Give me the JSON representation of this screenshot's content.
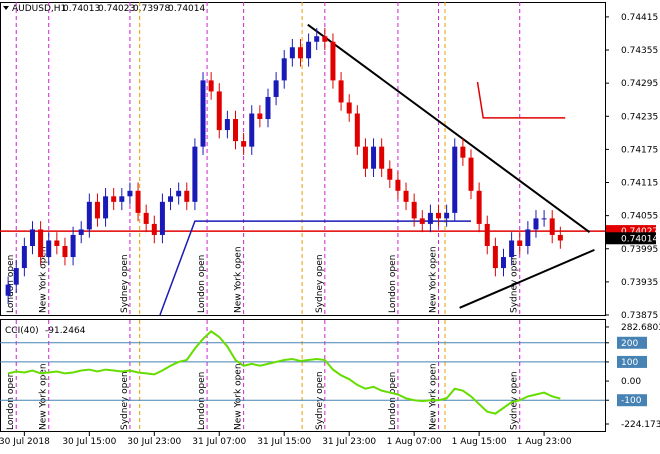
{
  "chart_data": {
    "type": "candlestick",
    "symbol": "AUDUSD,H1",
    "header_values": [
      0.74013,
      0.74023,
      0.73978,
      0.74014
    ],
    "xlim": [
      -1,
      73.5
    ],
    "ylim": [
      0.73875,
      0.74442
    ],
    "yticks": [
      0.74415,
      0.74355,
      0.74295,
      0.74235,
      0.74175,
      0.74115,
      0.74055,
      0.73995,
      0.73935,
      0.73875
    ],
    "xticks": [
      {
        "value": 2,
        "label": "30 Jul 2018"
      },
      {
        "value": 10,
        "label": "30 Jul 15:00"
      },
      {
        "value": 18,
        "label": "30 Jul 23:00"
      },
      {
        "value": 26,
        "label": "31 Jul 07:00"
      },
      {
        "value": 34,
        "label": "31 Jul 15:00"
      },
      {
        "value": 42,
        "label": "31 Jul 23:00"
      },
      {
        "value": 50,
        "label": "1 Aug 07:00"
      },
      {
        "value": 58,
        "label": "1 Aug 15:00"
      },
      {
        "value": 66,
        "label": "1 Aug 23:00"
      }
    ],
    "up_color": "#1a1ab8",
    "down_color": "#e00000",
    "open": [
      0.7391,
      0.7393,
      0.7396,
      0.74,
      0.7403,
      0.7398,
      0.7401,
      0.74,
      0.7398,
      0.7402,
      0.7403,
      0.7408,
      0.7405,
      0.7409,
      0.7408,
      0.7409,
      0.741,
      0.7406,
      0.7404,
      0.7402,
      0.7408,
      0.7409,
      0.741,
      0.7408,
      0.7418,
      0.743,
      0.7428,
      0.7421,
      0.7423,
      0.7419,
      0.7418,
      0.7424,
      0.7423,
      0.7427,
      0.743,
      0.7434,
      0.7436,
      0.7434,
      0.7437,
      0.7438,
      0.7437,
      0.743,
      0.7426,
      0.7424,
      0.7418,
      0.7414,
      0.7418,
      0.7414,
      0.7412,
      0.741,
      0.7408,
      0.7405,
      0.7404,
      0.7406,
      0.7405,
      0.7406,
      0.7418,
      0.7416,
      0.741,
      0.7404,
      0.74,
      0.7396,
      0.7398,
      0.7401,
      0.74,
      0.7403,
      0.7405,
      0.7405,
      0.7402
    ],
    "high": [
      0.73945,
      0.73975,
      0.74015,
      0.74045,
      0.74045,
      0.74025,
      0.74025,
      0.74015,
      0.74035,
      0.74045,
      0.74095,
      0.74095,
      0.74105,
      0.74105,
      0.74105,
      0.74115,
      0.74115,
      0.74075,
      0.74055,
      0.74095,
      0.74105,
      0.74115,
      0.74115,
      0.74195,
      0.74315,
      0.74315,
      0.74295,
      0.74245,
      0.74245,
      0.74205,
      0.74255,
      0.74255,
      0.74285,
      0.74315,
      0.74355,
      0.74375,
      0.74375,
      0.74385,
      0.74395,
      0.74395,
      0.74385,
      0.74315,
      0.74275,
      0.74255,
      0.74195,
      0.74195,
      0.74195,
      0.74155,
      0.74135,
      0.74115,
      0.74095,
      0.74065,
      0.74075,
      0.74075,
      0.74075,
      0.74195,
      0.74195,
      0.74175,
      0.74115,
      0.74055,
      0.74015,
      0.73995,
      0.74025,
      0.74025,
      0.74045,
      0.74065,
      0.74065,
      0.74065,
      0.74035
    ],
    "low": [
      0.73895,
      0.73915,
      0.73945,
      0.73985,
      0.73965,
      0.73965,
      0.73985,
      0.73965,
      0.73965,
      0.74005,
      0.74015,
      0.74035,
      0.74035,
      0.74065,
      0.74065,
      0.74075,
      0.74045,
      0.74025,
      0.74005,
      0.74005,
      0.74065,
      0.74075,
      0.74065,
      0.74065,
      0.74165,
      0.74265,
      0.74195,
      0.74195,
      0.74175,
      0.74165,
      0.74165,
      0.74215,
      0.74215,
      0.74255,
      0.74285,
      0.74325,
      0.74325,
      0.74325,
      0.74355,
      0.74355,
      0.74285,
      0.74245,
      0.74225,
      0.74165,
      0.74125,
      0.74125,
      0.74125,
      0.74105,
      0.74085,
      0.74065,
      0.74035,
      0.74025,
      0.74025,
      0.74035,
      0.74035,
      0.74045,
      0.74145,
      0.74085,
      0.74025,
      0.73985,
      0.73945,
      0.73945,
      0.73965,
      0.73985,
      0.73985,
      0.74015,
      0.74035,
      0.74005,
      0.73995
    ],
    "close": [
      0.7393,
      0.7396,
      0.74,
      0.7403,
      0.7398,
      0.7401,
      0.74,
      0.7398,
      0.7402,
      0.7403,
      0.7408,
      0.7405,
      0.7409,
      0.7408,
      0.7409,
      0.741,
      0.7406,
      0.7404,
      0.7402,
      0.7408,
      0.7409,
      0.741,
      0.7408,
      0.7418,
      0.743,
      0.7428,
      0.7421,
      0.7423,
      0.7419,
      0.7418,
      0.7424,
      0.7423,
      0.7427,
      0.743,
      0.7434,
      0.7436,
      0.7434,
      0.7437,
      0.7438,
      0.7437,
      0.743,
      0.7426,
      0.7424,
      0.7418,
      0.7414,
      0.7418,
      0.7414,
      0.7412,
      0.741,
      0.7408,
      0.7405,
      0.7404,
      0.7406,
      0.7405,
      0.7406,
      0.7418,
      0.7416,
      0.741,
      0.7404,
      0.74,
      0.7396,
      0.7398,
      0.7401,
      0.74,
      0.7403,
      0.7405,
      0.7405,
      0.7402,
      0.7401
    ],
    "price_labels": [
      {
        "value": 0.74027,
        "color": "#e00000"
      },
      {
        "value": 0.74014,
        "color": "#000000"
      }
    ],
    "lines": [
      {
        "x": [
          -1,
          73.5
        ],
        "y": [
          0.74027,
          0.74027
        ],
        "color": "#e00000"
      },
      {
        "x": [
          23.5,
          57
        ],
        "y": [
          0.74045,
          0.74045
        ],
        "color": "#1a1ab8"
      },
      {
        "x": [
          18.7,
          23,
          23.5
        ],
        "y": [
          0.73875,
          0.74045,
          0.74045
        ],
        "color": "#1a1ab8"
      },
      {
        "x": [
          57.8,
          58.5,
          68.6
        ],
        "y": [
          0.74297,
          0.74232,
          0.74232
        ],
        "color": "#e00000"
      },
      {
        "x": [
          36.9,
          71.6
        ],
        "y": [
          0.74401,
          0.74025
        ],
        "color": "#000000"
      },
      {
        "x": [
          55.6,
          72.2
        ],
        "y": [
          0.73888,
          0.73993
        ],
        "color": "#000000"
      }
    ],
    "sessions": [
      {
        "x": 1,
        "label": "London open"
      },
      {
        "x": 5,
        "label": "New York open"
      },
      {
        "x": 15,
        "label": "Sydney open"
      },
      {
        "x": 24.5,
        "label": "London open"
      },
      {
        "x": 29,
        "label": "New York open"
      },
      {
        "x": 39,
        "label": "Sydney open"
      },
      {
        "x": 48,
        "label": "London open"
      },
      {
        "x": 53,
        "label": "New York open"
      },
      {
        "x": 63,
        "label": "Sydney open"
      }
    ],
    "separators": [
      16.2,
      36.2,
      53.8
    ],
    "cci": {
      "label": "CCI(40)",
      "color": "#66dd00",
      "ylim": [
        -266,
        319
      ],
      "yticks": [
        282.6803,
        200,
        100,
        {
          "value": 0,
          "label": "0.00"
        },
        -100,
        -224.1738
      ],
      "levels": [
        200,
        100,
        -100
      ],
      "values": [
        40,
        50,
        45,
        55,
        40,
        45,
        50,
        40,
        45,
        55,
        60,
        50,
        60,
        55,
        50,
        55,
        45,
        40,
        35,
        55,
        80,
        100,
        110,
        170,
        220,
        260,
        230,
        180,
        110,
        80,
        90,
        80,
        90,
        100,
        110,
        115,
        105,
        110,
        115,
        110,
        60,
        30,
        10,
        -20,
        -40,
        -30,
        -50,
        -60,
        -70,
        -90,
        -100,
        -105,
        -100,
        -100,
        -90,
        -40,
        -50,
        -80,
        -120,
        -160,
        -170,
        -140,
        -110,
        -100,
        -80,
        -70,
        -60,
        -80,
        -91.2464
      ]
    }
  }
}
